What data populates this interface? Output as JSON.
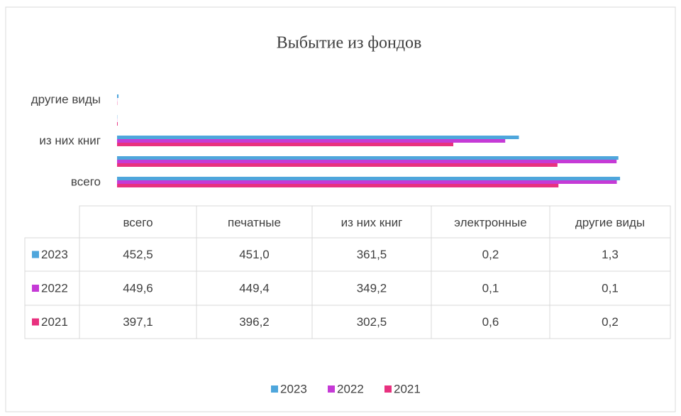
{
  "chart_data": {
    "type": "bar",
    "orientation": "horizontal",
    "title": "Выбытие из фондов",
    "categories": [
      "всего",
      "печатные",
      "из них книг",
      "электронные",
      "другие виды"
    ],
    "series": [
      {
        "name": "2023",
        "color": "#4ea6dc",
        "values": [
          452.5,
          451.0,
          361.5,
          0.2,
          1.3
        ],
        "value_labels": [
          "452,5",
          "451,0",
          "361,5",
          "0,2",
          "1,3"
        ]
      },
      {
        "name": "2022",
        "color": "#c53ad6",
        "values": [
          449.6,
          449.4,
          349.2,
          0.1,
          0.1
        ],
        "value_labels": [
          "449,6",
          "449,4",
          "349,2",
          "0,1",
          "0,1"
        ]
      },
      {
        "name": "2021",
        "color": "#e8317f",
        "values": [
          397.1,
          396.2,
          302.5,
          0.6,
          0.2
        ],
        "value_labels": [
          "397,1",
          "396,2",
          "302,5",
          "0,6",
          "0,2"
        ]
      }
    ],
    "xlim": [
      0,
      500
    ],
    "legend": "bottom"
  }
}
